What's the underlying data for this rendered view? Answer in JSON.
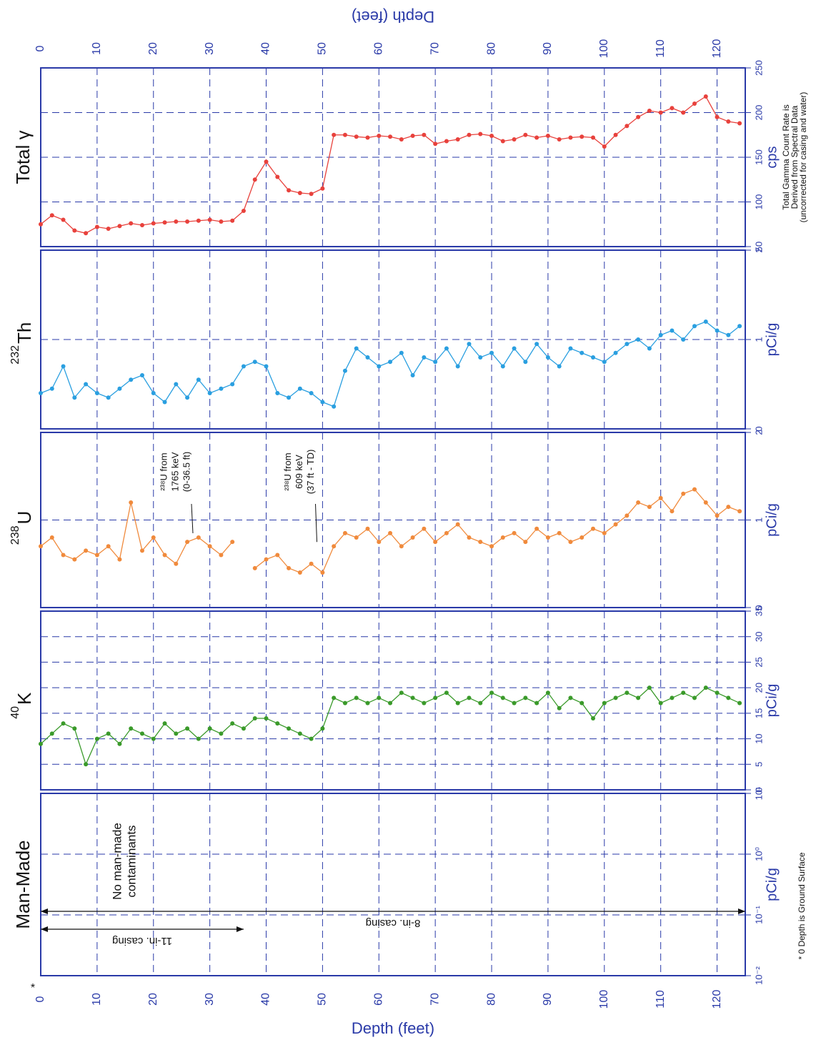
{
  "depth_axis": {
    "label": "Depth (feet)",
    "xlim": [
      0,
      125
    ],
    "xticks": [
      0,
      10,
      20,
      30,
      40,
      50,
      60,
      70,
      80,
      90,
      100,
      110,
      120
    ],
    "x": [
      0,
      2,
      4,
      6,
      8,
      10,
      12,
      14,
      16,
      18,
      20,
      22,
      24,
      26,
      28,
      30,
      32,
      34,
      36,
      38,
      40,
      42,
      44,
      46,
      48,
      50,
      52,
      54,
      56,
      58,
      60,
      62,
      64,
      66,
      68,
      70,
      72,
      74,
      76,
      78,
      80,
      82,
      84,
      86,
      88,
      90,
      92,
      94,
      96,
      98,
      100,
      102,
      104,
      106,
      108,
      110,
      112,
      114,
      116,
      118,
      120,
      122,
      124
    ]
  },
  "chart_data": [
    {
      "type": "line",
      "title": "Total γ",
      "y_unit": "cps",
      "color": "#e8413c",
      "ylim": [
        50,
        250
      ],
      "yticks": [
        50,
        100,
        150,
        200,
        250
      ],
      "grid": true,
      "note": [
        "Total Gamma Count Rate is",
        "Derived from Spectral Data",
        "(uncorrected for casing and water)"
      ],
      "values": [
        75,
        85,
        80,
        68,
        65,
        72,
        70,
        73,
        76,
        74,
        76,
        77,
        78,
        78,
        79,
        80,
        78,
        79,
        90,
        125,
        145,
        128,
        113,
        110,
        109,
        115,
        175,
        175,
        173,
        172,
        174,
        173,
        170,
        174,
        175,
        165,
        168,
        170,
        175,
        176,
        174,
        168,
        170,
        175,
        172,
        174,
        170,
        172,
        173,
        172,
        162,
        175,
        185,
        195,
        202,
        200,
        205,
        200,
        210,
        218,
        195,
        190,
        188
      ]
    },
    {
      "type": "line",
      "title_sup": "232",
      "title": "Th",
      "y_unit": "pCi/g",
      "color": "#2a9fe0",
      "ylim": [
        0,
        2
      ],
      "yticks": [
        0,
        1,
        2
      ],
      "grid": true,
      "values": [
        0.4,
        0.45,
        0.7,
        0.35,
        0.5,
        0.4,
        0.35,
        0.45,
        0.55,
        0.6,
        0.4,
        0.3,
        0.5,
        0.35,
        0.55,
        0.4,
        0.45,
        0.5,
        0.7,
        0.75,
        0.7,
        0.4,
        0.35,
        0.45,
        0.4,
        0.3,
        0.25,
        0.65,
        0.9,
        0.8,
        0.7,
        0.75,
        0.85,
        0.6,
        0.8,
        0.75,
        0.9,
        0.7,
        0.95,
        0.8,
        0.85,
        0.7,
        0.9,
        0.75,
        0.95,
        0.8,
        0.7,
        0.9,
        0.85,
        0.8,
        0.75,
        0.85,
        0.95,
        1.0,
        0.9,
        1.05,
        1.1,
        1.0,
        1.15,
        1.2,
        1.1,
        1.05,
        1.15
      ]
    },
    {
      "type": "line",
      "title_sup": "238",
      "title": "U",
      "y_unit": "pCi/g",
      "color": "#f08a3c",
      "ylim": [
        0,
        2
      ],
      "yticks": [
        0,
        1,
        2
      ],
      "grid": true,
      "annotations": [
        {
          "lines": [
            "²³⁸U from",
            "1765 keV",
            "(0-36.5 ft)"
          ],
          "x": 27,
          "y": 0.8
        },
        {
          "lines": [
            "²³⁸U from",
            "609 keV",
            "(37 ft - TD)"
          ],
          "x": 49,
          "y": 0.7
        }
      ],
      "values": [
        0.7,
        0.8,
        0.6,
        0.55,
        0.65,
        0.6,
        0.7,
        0.55,
        1.2,
        0.65,
        0.8,
        0.6,
        0.5,
        0.75,
        0.8,
        0.7,
        0.6,
        0.75,
        null,
        0.45,
        0.55,
        0.6,
        0.45,
        0.4,
        0.5,
        0.4,
        0.7,
        0.85,
        0.8,
        0.9,
        0.75,
        0.85,
        0.7,
        0.8,
        0.9,
        0.75,
        0.85,
        0.95,
        0.8,
        0.75,
        0.7,
        0.8,
        0.85,
        0.75,
        0.9,
        0.8,
        0.85,
        0.75,
        0.8,
        0.9,
        0.85,
        0.95,
        1.05,
        1.2,
        1.15,
        1.25,
        1.1,
        1.3,
        1.35,
        1.2,
        1.05,
        1.15,
        1.1
      ]
    },
    {
      "type": "line",
      "title_sup": "40",
      "title": "K",
      "y_unit": "pCi/g",
      "color": "#3a9a2a",
      "ylim": [
        0,
        35
      ],
      "yticks": [
        0,
        5,
        10,
        15,
        20,
        25,
        30,
        35
      ],
      "grid": true,
      "values": [
        9,
        11,
        13,
        12,
        5,
        10,
        11,
        9,
        12,
        11,
        10,
        13,
        11,
        12,
        10,
        12,
        11,
        13,
        12,
        14,
        14,
        13,
        12,
        11,
        10,
        12,
        18,
        17,
        18,
        17,
        18,
        17,
        19,
        18,
        17,
        18,
        19,
        17,
        18,
        17,
        19,
        18,
        17,
        18,
        17,
        19,
        16,
        18,
        17,
        14,
        17,
        18,
        19,
        18,
        20,
        17,
        18,
        19,
        18,
        20,
        19,
        18,
        17
      ]
    },
    {
      "type": "log",
      "title": "Man-Made",
      "y_unit": "pCi/g",
      "log_scale": true,
      "ylim": [
        0.01,
        10
      ],
      "grid": true,
      "yticks": [
        {
          "value": 0.01,
          "label": "10⁻²"
        },
        {
          "value": 0.1,
          "label": "10⁻¹"
        },
        {
          "value": 1,
          "label": "10⁰"
        },
        {
          "value": 10,
          "label": "10¹"
        }
      ],
      "annotation": [
        "No man-made",
        "contaminants"
      ],
      "casings": [
        {
          "label": "8-in. casing",
          "from": 0,
          "to": 125
        },
        {
          "label": "11-in. casing",
          "from": 0,
          "to": 36
        }
      ],
      "footnote_mark": "*",
      "footnote": "* 0 Depth is Ground Surface"
    }
  ]
}
